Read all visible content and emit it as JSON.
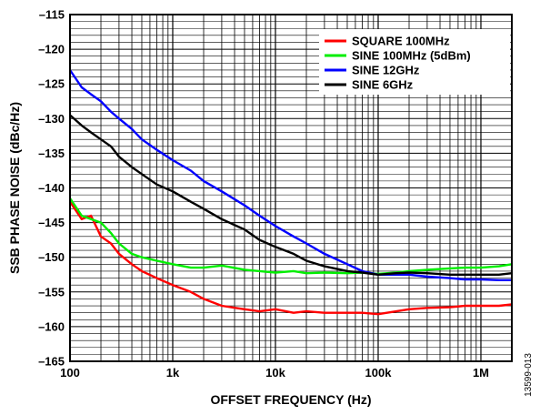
{
  "chart_data": {
    "type": "line",
    "xlabel": "OFFSET FREQUENCY (Hz)",
    "ylabel": "SSB PHASE NOISE (dBc/Hz)",
    "xscale": "log",
    "xlim": [
      100,
      2000000
    ],
    "ylim": [
      -165,
      -115
    ],
    "x_ticks": [
      {
        "value": 100,
        "label": "100"
      },
      {
        "value": 1000,
        "label": "1k"
      },
      {
        "value": 10000,
        "label": "10k"
      },
      {
        "value": 100000,
        "label": "100k"
      },
      {
        "value": 1000000,
        "label": "1M"
      }
    ],
    "y_ticks": [
      {
        "value": -115,
        "label": "–115"
      },
      {
        "value": -120,
        "label": "–120"
      },
      {
        "value": -125,
        "label": "–125"
      },
      {
        "value": -130,
        "label": "–130"
      },
      {
        "value": -135,
        "label": "–135"
      },
      {
        "value": -140,
        "label": "–140"
      },
      {
        "value": -145,
        "label": "–145"
      },
      {
        "value": -150,
        "label": "–150"
      },
      {
        "value": -155,
        "label": "–155"
      },
      {
        "value": -160,
        "label": "–160"
      },
      {
        "value": -165,
        "label": "–165"
      }
    ],
    "grid": true,
    "legend_position": "top-right",
    "series": [
      {
        "name": "SQUARE 100MHz",
        "color": "#ff0000",
        "x": [
          100,
          130,
          160,
          200,
          250,
          300,
          400,
          500,
          700,
          1000,
          1500,
          2000,
          3000,
          5000,
          7000,
          10000,
          15000,
          20000,
          30000,
          50000,
          70000,
          100000,
          150000,
          200000,
          300000,
          500000,
          700000,
          1000000,
          1500000,
          2000000
        ],
        "y": [
          -142,
          -144.5,
          -144,
          -147,
          -148,
          -149.5,
          -151,
          -152,
          -153,
          -154,
          -155,
          -156,
          -157,
          -157.5,
          -157.8,
          -157.5,
          -158,
          -157.8,
          -158,
          -158,
          -158,
          -158.2,
          -157.8,
          -157.5,
          -157.3,
          -157.2,
          -157,
          -157,
          -157,
          -156.8
        ]
      },
      {
        "name": "SINE 100MHz (5dBm)",
        "color": "#00ee00",
        "x": [
          100,
          130,
          160,
          200,
          250,
          300,
          400,
          500,
          700,
          1000,
          1500,
          2000,
          3000,
          5000,
          7000,
          10000,
          15000,
          20000,
          30000,
          50000,
          70000,
          100000,
          150000,
          200000,
          300000,
          500000,
          700000,
          1000000,
          1500000,
          2000000
        ],
        "y": [
          -141.5,
          -144,
          -144.5,
          -145,
          -146.5,
          -148,
          -149.5,
          -150,
          -150.5,
          -151,
          -151.5,
          -151.5,
          -151.2,
          -151.8,
          -152,
          -152.2,
          -152,
          -152.3,
          -152.2,
          -152.3,
          -152.2,
          -152.4,
          -152.2,
          -152,
          -151.8,
          -151.6,
          -151.5,
          -151.5,
          -151.3,
          -151
        ]
      },
      {
        "name": "SINE 12GHz",
        "color": "#0000ff",
        "x": [
          100,
          130,
          160,
          200,
          250,
          300,
          400,
          500,
          700,
          1000,
          1500,
          2000,
          3000,
          5000,
          7000,
          10000,
          15000,
          20000,
          30000,
          50000,
          70000,
          100000,
          150000,
          200000,
          300000,
          500000,
          700000,
          1000000,
          1500000,
          2000000
        ],
        "y": [
          -123,
          -125.5,
          -126.5,
          -127.5,
          -129,
          -130,
          -131.5,
          -133,
          -134.5,
          -136,
          -137.5,
          -139,
          -140.5,
          -142.5,
          -144,
          -145.5,
          -147,
          -148,
          -149.5,
          -151,
          -152,
          -152.5,
          -152.5,
          -152.5,
          -152.8,
          -153,
          -153.2,
          -153.2,
          -153.3,
          -153.3
        ]
      },
      {
        "name": "SINE 6GHz",
        "color": "#000000",
        "x": [
          100,
          130,
          160,
          200,
          250,
          300,
          400,
          500,
          700,
          1000,
          1500,
          2000,
          3000,
          5000,
          7000,
          10000,
          15000,
          20000,
          30000,
          50000,
          70000,
          100000,
          150000,
          200000,
          300000,
          500000,
          700000,
          1000000,
          1500000,
          2000000
        ],
        "y": [
          -129.5,
          -131,
          -132,
          -133,
          -134,
          -135.5,
          -137,
          -138,
          -139.5,
          -140.5,
          -142,
          -143,
          -144.5,
          -146,
          -147.5,
          -148.5,
          -149.5,
          -150.5,
          -151.3,
          -152,
          -152.2,
          -152.5,
          -152.3,
          -152.2,
          -152.3,
          -152.5,
          -152.5,
          -152.5,
          -152.5,
          -152.3
        ]
      }
    ]
  },
  "figure_id": "13599-013"
}
